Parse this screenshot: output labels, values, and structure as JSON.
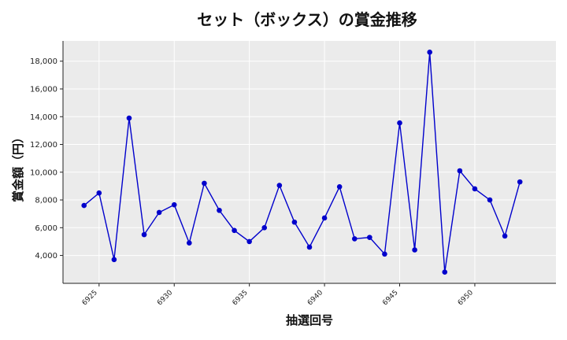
{
  "chart_data": {
    "type": "line",
    "title": "セット（ボックス）の賞金推移",
    "xlabel": "抽選回号",
    "ylabel": "賞金額（円）",
    "x": [
      6924,
      6925,
      6926,
      6927,
      6928,
      6929,
      6930,
      6931,
      6932,
      6933,
      6934,
      6935,
      6936,
      6937,
      6938,
      6939,
      6940,
      6941,
      6942,
      6943,
      6944,
      6945,
      6946,
      6947,
      6948,
      6949,
      6950,
      6951,
      6952,
      6953
    ],
    "series": [
      {
        "values": [
          7600,
          8500,
          3700,
          13900,
          5500,
          7100,
          7650,
          4900,
          9200,
          7250,
          5800,
          5000,
          6000,
          9050,
          6400,
          4600,
          6700,
          8950,
          5200,
          5300,
          4100,
          13550,
          4400,
          18650,
          2800,
          10100,
          8800,
          8000,
          5400,
          9300
        ]
      }
    ],
    "xticks": [
      6925,
      6930,
      6935,
      6940,
      6945,
      6950
    ],
    "yticks": [
      "4,000",
      "6,000",
      "8,000",
      "10,000",
      "12,000",
      "14,000",
      "16,000",
      "18,000"
    ],
    "xlim": [
      6922.6,
      6955.4
    ],
    "ylim": [
      1990,
      19460
    ],
    "grid": true,
    "colors": {
      "line": "#0000cc",
      "marker": "#0000cc",
      "plot_bg": "#ebebeb",
      "grid": "#ffffff"
    }
  }
}
